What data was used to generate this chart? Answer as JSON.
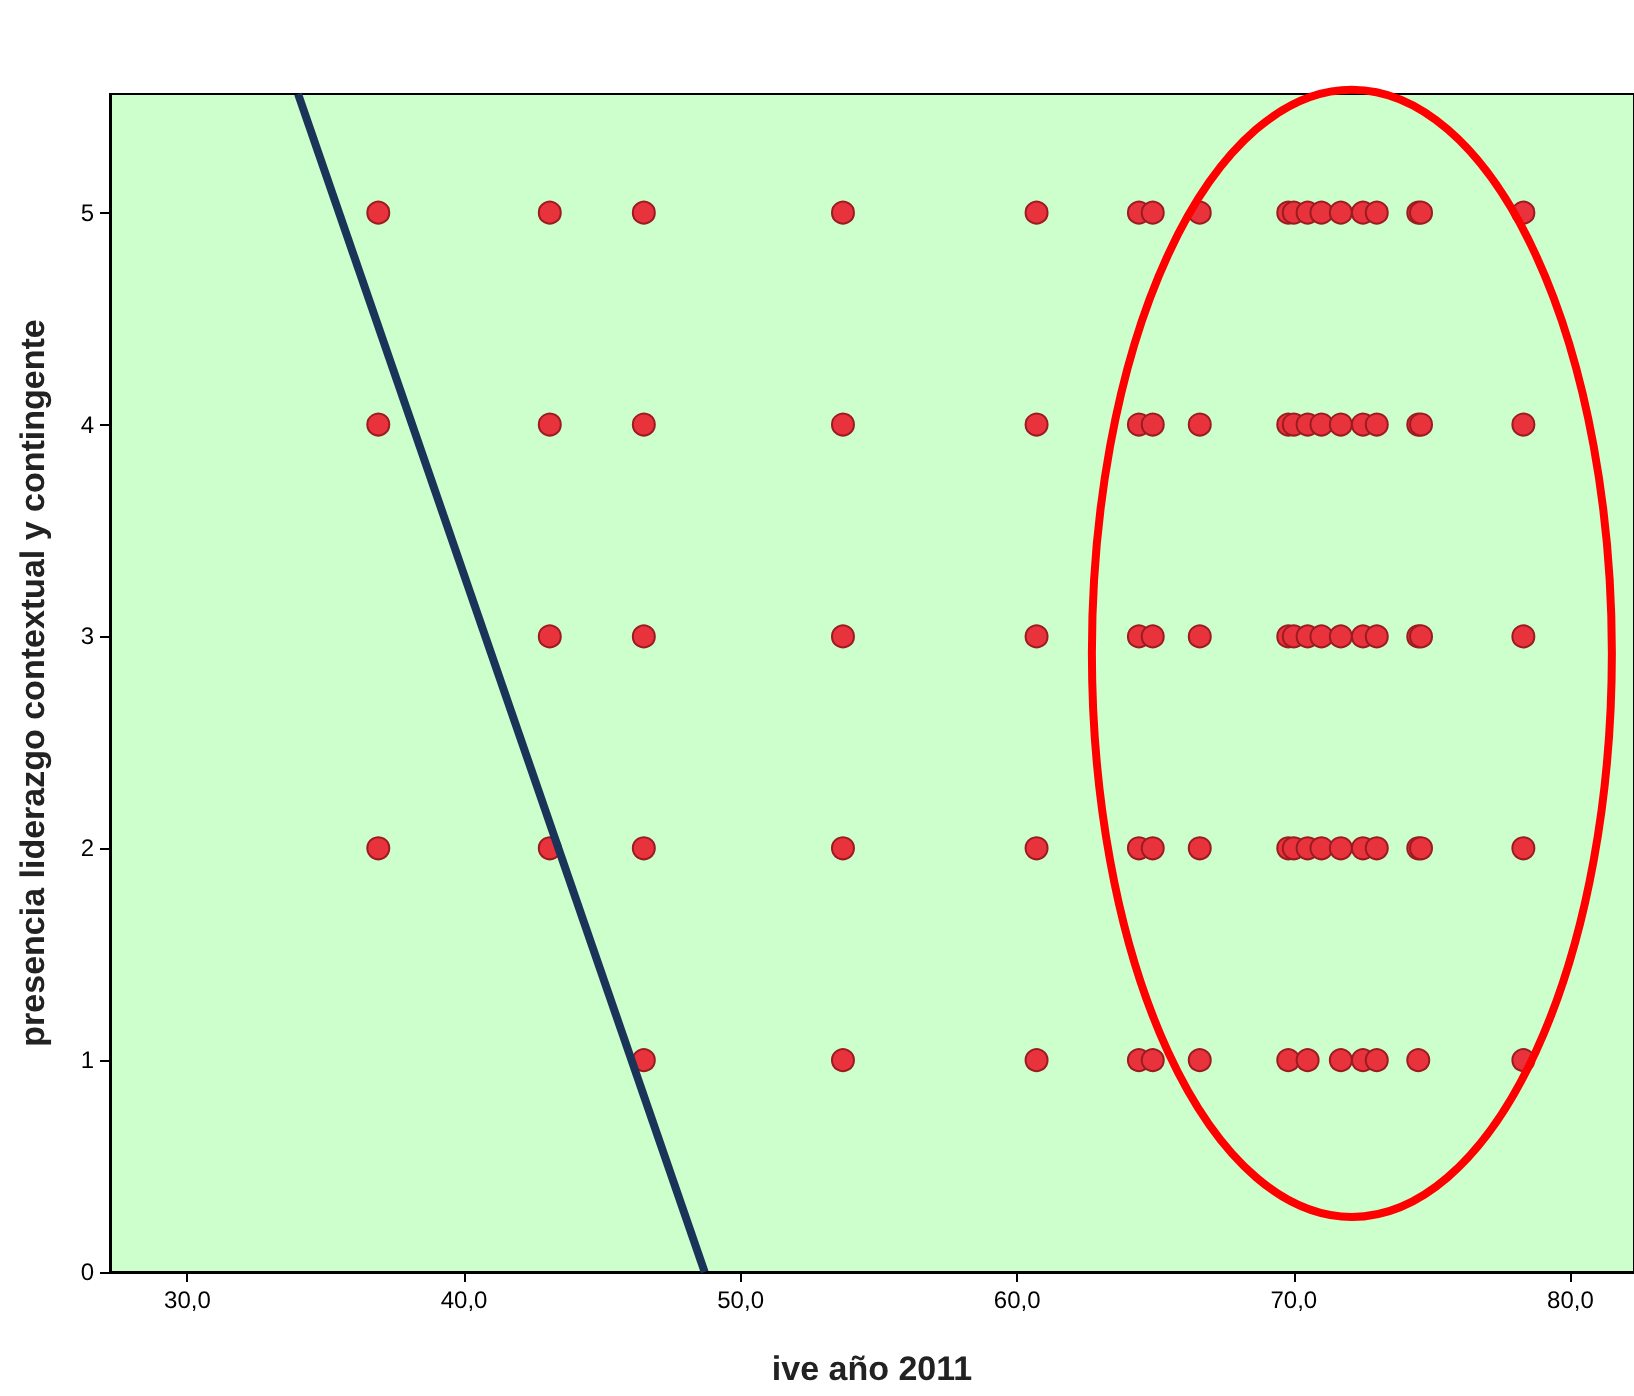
{
  "chart_data": {
    "type": "scatter",
    "xlabel": "ive año 2011",
    "ylabel": "presencia liderazgo contextual y contingente",
    "series": [
      {
        "color": "#e8323c",
        "x": [
          36.9,
          43.1,
          46.5,
          53.7,
          60.7,
          64.4,
          64.9,
          66.6,
          69.8,
          70.0,
          70.5,
          71.0,
          71.7,
          72.5,
          73.0,
          74.5,
          74.6,
          78.3,
          36.9,
          43.1,
          46.5,
          53.7,
          60.7,
          64.4,
          64.9,
          66.6,
          69.8,
          70.0,
          70.5,
          71.0,
          71.7,
          72.5,
          73.0,
          74.5,
          74.6,
          78.3,
          43.1,
          46.5,
          53.7,
          60.7,
          64.4,
          64.9,
          66.6,
          69.8,
          70.0,
          70.5,
          71.0,
          71.7,
          72.5,
          73.0,
          74.5,
          74.6,
          78.3,
          36.9,
          43.1,
          46.5,
          53.7,
          60.7,
          64.4,
          64.9,
          66.6,
          69.8,
          70.0,
          70.5,
          71.0,
          71.7,
          72.5,
          73.0,
          74.5,
          74.6,
          78.3,
          46.5,
          53.7,
          60.7,
          64.4,
          64.9,
          66.6,
          69.8,
          70.5,
          71.7,
          72.5,
          73.0,
          74.5,
          78.3
        ],
        "values": [
          5,
          5,
          5,
          5,
          5,
          5,
          5,
          5,
          5,
          5,
          5,
          5,
          5,
          5,
          5,
          5,
          5,
          5,
          4,
          4,
          4,
          4,
          4,
          4,
          4,
          4,
          4,
          4,
          4,
          4,
          4,
          4,
          4,
          4,
          4,
          4,
          3,
          3,
          3,
          3,
          3,
          3,
          3,
          3,
          3,
          3,
          3,
          3,
          3,
          3,
          3,
          3,
          3,
          2,
          2,
          2,
          2,
          2,
          2,
          2,
          2,
          2,
          2,
          2,
          2,
          2,
          2,
          2,
          2,
          2,
          2,
          1,
          1,
          1,
          1,
          1,
          1,
          1,
          1,
          1,
          1,
          1,
          1,
          1
        ]
      },
      {
        "type": "line",
        "color": "#1a3358",
        "x": [
          34.0,
          48.7
        ],
        "values": [
          5.56,
          0
        ],
        "marker": "none"
      }
    ],
    "xlim": [
      27.2,
      82.3
    ],
    "ylim": [
      0,
      5.56
    ],
    "xticks": [
      {
        "value": 30,
        "label": "30,0"
      },
      {
        "value": 40,
        "label": "40,0"
      },
      {
        "value": 50,
        "label": "50,0"
      },
      {
        "value": 60,
        "label": "60,0"
      },
      {
        "value": 70,
        "label": "70,0"
      },
      {
        "value": 80,
        "label": "80,0"
      }
    ],
    "yticks": [
      0,
      1,
      2,
      3,
      4,
      5
    ],
    "marker": "circle",
    "grid": false
  }
}
